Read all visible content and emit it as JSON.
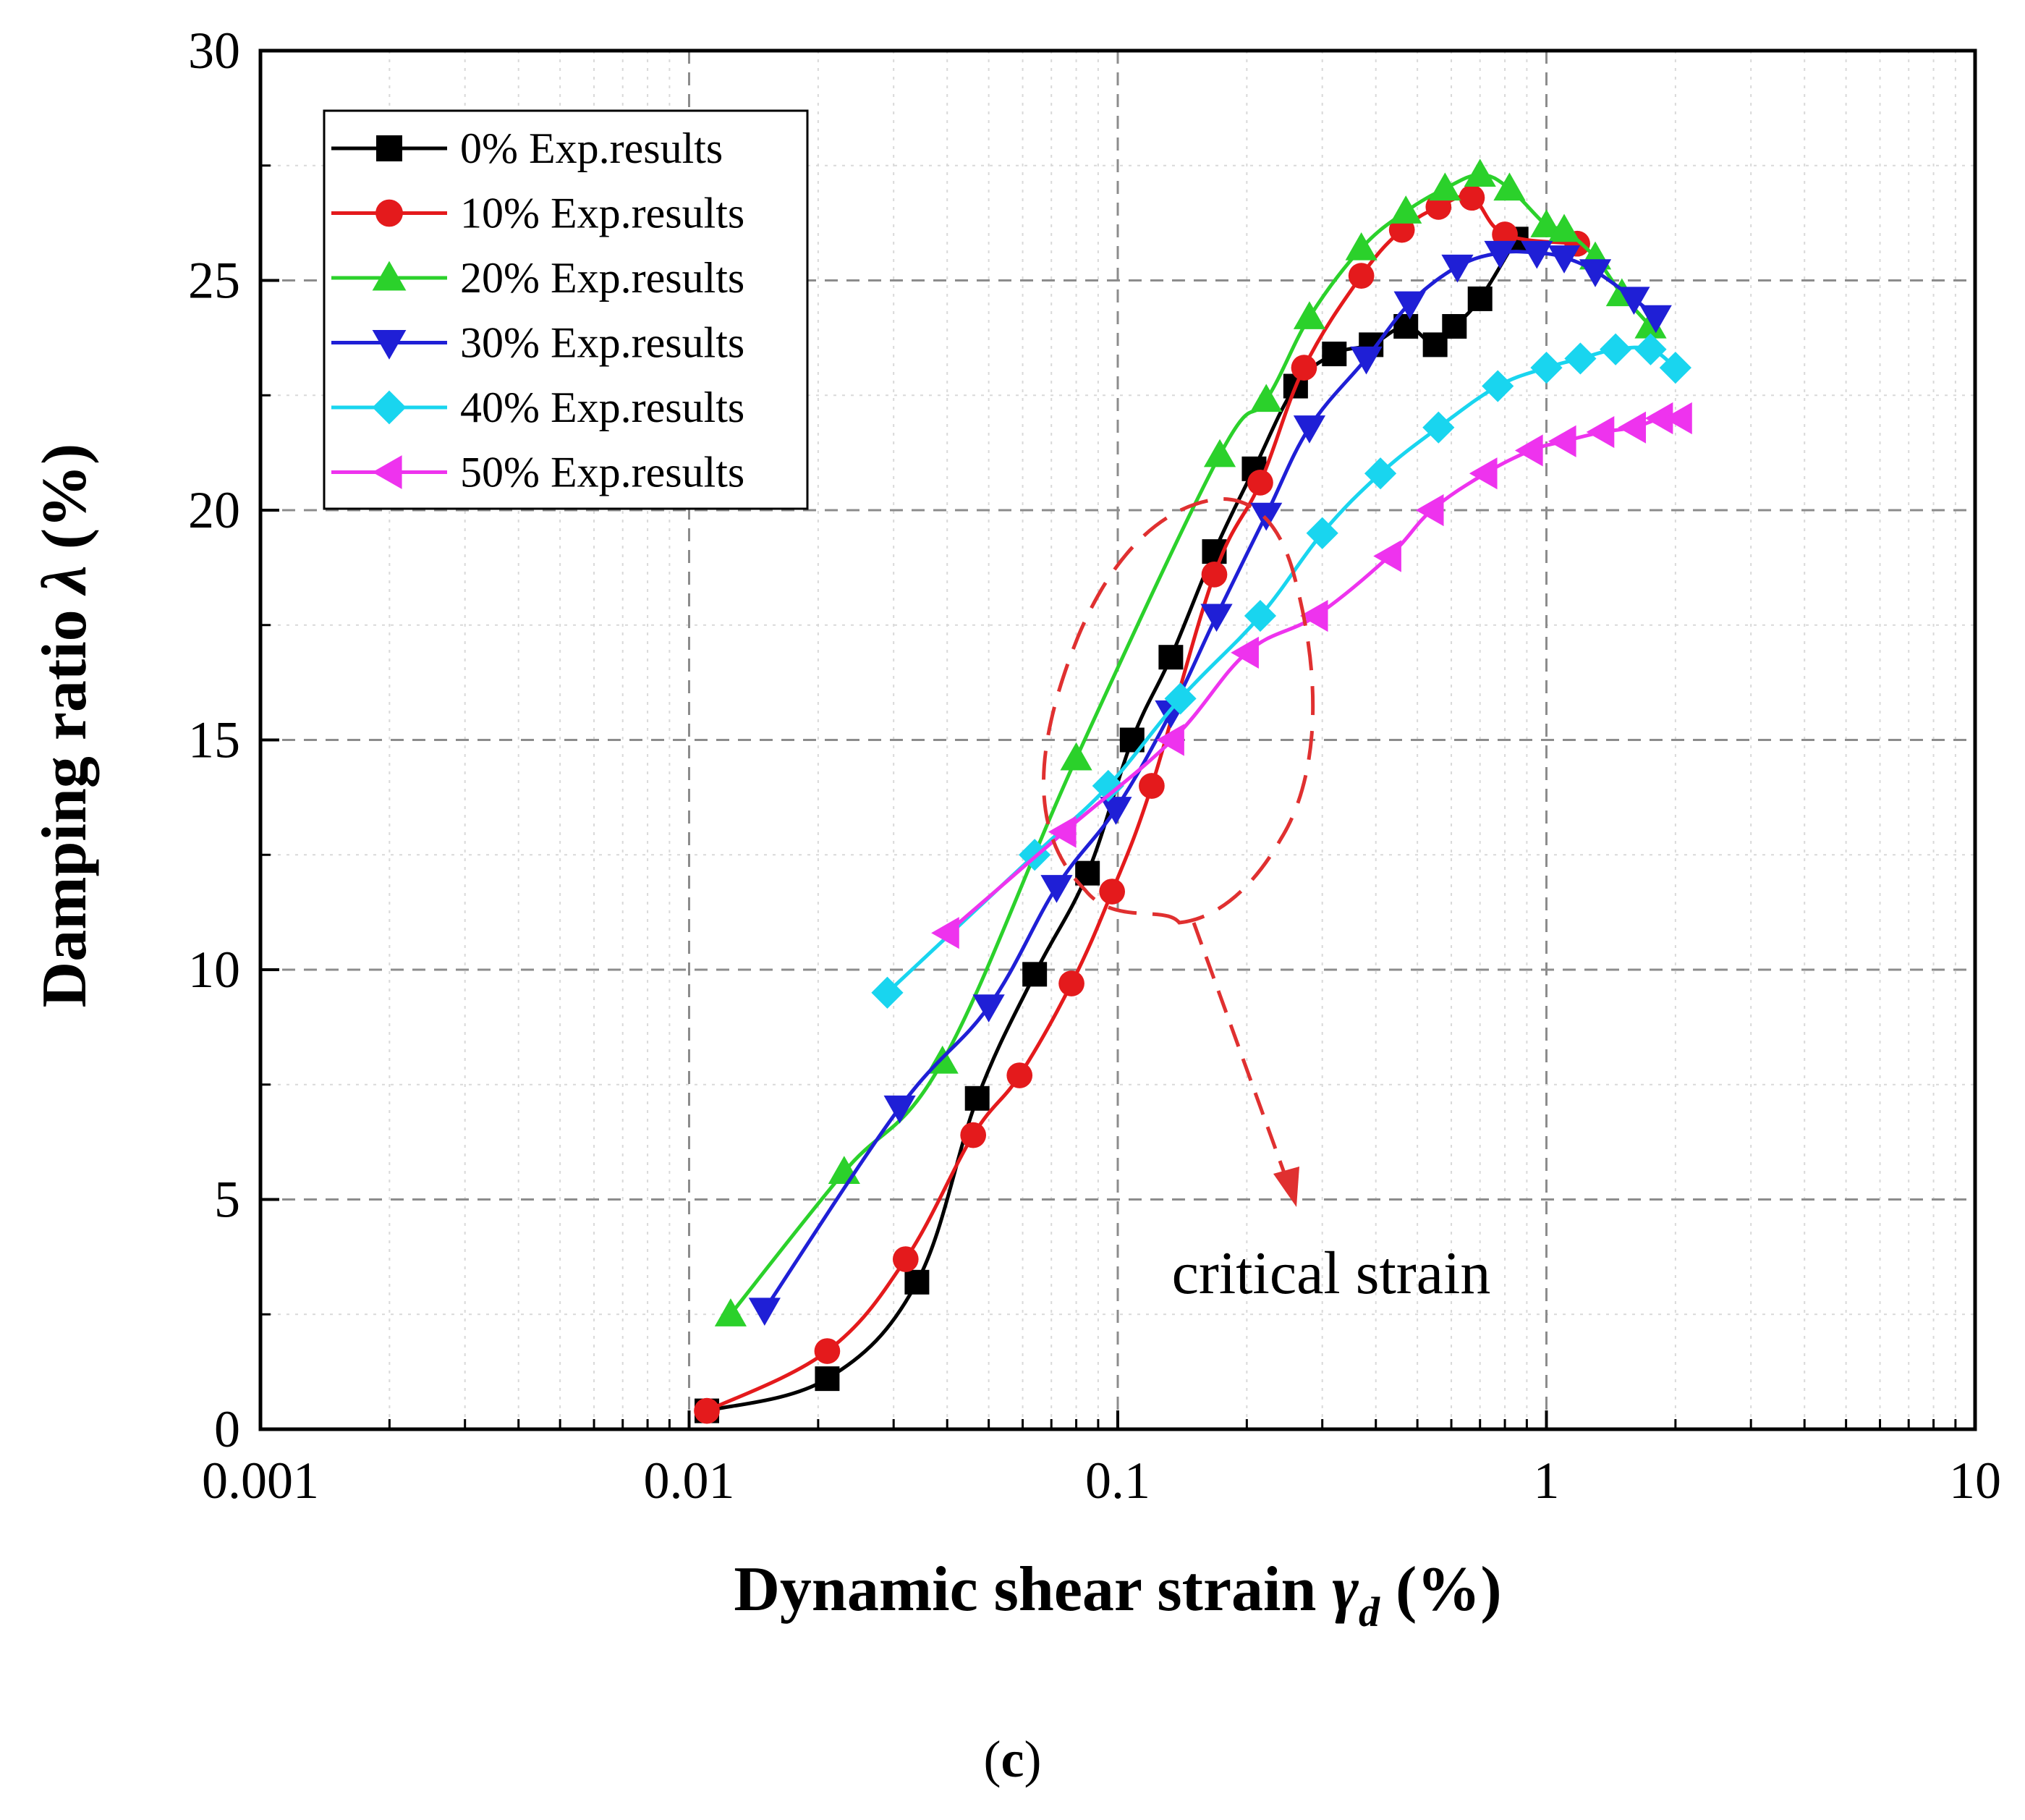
{
  "chart_data": {
    "type": "line",
    "xscale": "log",
    "xlim": [
      0.001,
      10
    ],
    "ylim": [
      0,
      30
    ],
    "xticks": [
      0.001,
      0.01,
      0.1,
      1,
      10
    ],
    "xtick_labels": [
      "0.001",
      "0.01",
      "0.1",
      "1",
      "10"
    ],
    "yticks": [
      0,
      5,
      10,
      15,
      20,
      25,
      30
    ],
    "ytick_labels": [
      "0",
      "5",
      "10",
      "15",
      "20",
      "25",
      "30"
    ],
    "xlabel_main": "Dynamic shear strain ",
    "xlabel_symbol": "γ",
    "xlabel_sub": "d",
    "xlabel_unit": " (%)",
    "ylabel_main": "Damping ratio ",
    "ylabel_symbol": "λ",
    "ylabel_unit": " (%)",
    "grid": true,
    "legend_position": "top-left",
    "annotation": "critical strain",
    "series": [
      {
        "name": "0% Exp.results",
        "color": "#000000",
        "marker": "square",
        "x": [
          0.011,
          0.021,
          0.034,
          0.047,
          0.064,
          0.085,
          0.108,
          0.133,
          0.168,
          0.208,
          0.26,
          0.32,
          0.39,
          0.47,
          0.55,
          0.61,
          0.7,
          0.85
        ],
        "y": [
          0.4,
          1.1,
          3.2,
          7.2,
          9.9,
          12.1,
          15.0,
          16.8,
          19.1,
          20.9,
          22.7,
          23.4,
          23.6,
          24.0,
          23.6,
          24.0,
          24.6,
          25.9
        ]
      },
      {
        "name": "10% Exp.results",
        "color": "#e41a1c",
        "marker": "circle",
        "x": [
          0.011,
          0.021,
          0.032,
          0.046,
          0.059,
          0.078,
          0.097,
          0.12,
          0.168,
          0.215,
          0.272,
          0.37,
          0.46,
          0.56,
          0.67,
          0.8,
          1.18
        ],
        "y": [
          0.4,
          1.7,
          3.7,
          6.4,
          7.7,
          9.7,
          11.7,
          14.0,
          18.6,
          20.6,
          23.1,
          25.1,
          26.1,
          26.6,
          26.8,
          26.0,
          25.8
        ]
      },
      {
        "name": "20% Exp.results",
        "color": "#2bd12b",
        "marker": "triangle-up",
        "x": [
          0.0125,
          0.023,
          0.039,
          0.08,
          0.173,
          0.222,
          0.28,
          0.37,
          0.47,
          0.58,
          0.7,
          0.82,
          1.0,
          1.1,
          1.3,
          1.5,
          1.75
        ],
        "y": [
          2.5,
          5.6,
          8.0,
          14.6,
          21.2,
          22.4,
          24.2,
          25.7,
          26.5,
          27.0,
          27.3,
          27.0,
          26.2,
          26.1,
          25.5,
          24.7,
          24.0
        ]
      },
      {
        "name": "30% Exp.results",
        "color": "#1f1fd6",
        "marker": "triangle-down",
        "x": [
          0.015,
          0.031,
          0.05,
          0.072,
          0.099,
          0.133,
          0.17,
          0.222,
          0.28,
          0.38,
          0.48,
          0.62,
          0.78,
          0.95,
          1.1,
          1.3,
          1.6,
          1.8
        ],
        "y": [
          2.6,
          7.0,
          9.2,
          11.8,
          13.5,
          15.6,
          17.7,
          19.9,
          21.8,
          23.3,
          24.5,
          25.3,
          25.6,
          25.6,
          25.5,
          25.2,
          24.6,
          24.2
        ]
      },
      {
        "name": "40% Exp.results",
        "color": "#19d5ef",
        "marker": "diamond",
        "x": [
          0.029,
          0.064,
          0.095,
          0.14,
          0.215,
          0.3,
          0.41,
          0.56,
          0.77,
          1.0,
          1.2,
          1.45,
          1.75,
          2.0
        ],
        "y": [
          9.5,
          12.5,
          14.0,
          15.9,
          17.7,
          19.5,
          20.8,
          21.8,
          22.7,
          23.1,
          23.3,
          23.5,
          23.5,
          23.1
        ]
      },
      {
        "name": "50% Exp.results",
        "color": "#ee33ee",
        "marker": "triangle-left",
        "x": [
          0.04,
          0.075,
          0.134,
          0.2,
          0.29,
          0.43,
          0.54,
          0.72,
          0.92,
          1.1,
          1.35,
          1.6,
          1.85,
          2.05
        ],
        "y": [
          10.8,
          13.0,
          15.0,
          16.9,
          17.7,
          19.0,
          20.0,
          20.8,
          21.3,
          21.5,
          21.7,
          21.8,
          22.0,
          22.0
        ]
      }
    ]
  },
  "caption": {
    "open": "(",
    "letter": "c",
    "close": ")"
  }
}
